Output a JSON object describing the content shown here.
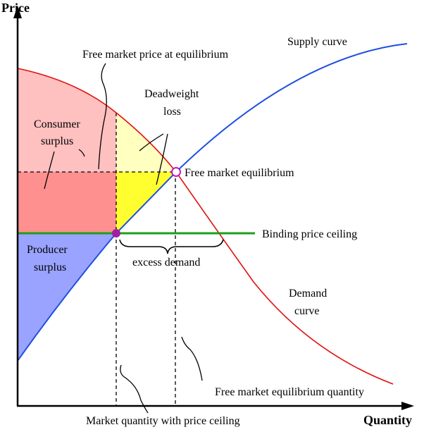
{
  "axes": {
    "y_label": "Price",
    "x_label": "Quantity"
  },
  "labels": {
    "supply_curve": "Supply curve",
    "demand_curve_line1": "Demand",
    "demand_curve_line2": "curve",
    "free_market_price": "Free market price at equilibrium",
    "deadweight_line1": "Deadweight",
    "deadweight_line2": "loss",
    "consumer_line1": "Consumer",
    "consumer_line2": "surplus",
    "producer_line1": "Producer",
    "producer_line2": "surplus",
    "free_market_equilibrium": "Free market equilibrium",
    "binding_price_ceiling": "Binding price ceiling",
    "excess_demand": "excess demand",
    "free_market_equilibrium_quantity": "Free market equilibrium quantity",
    "market_quantity_with_ceiling": "Market quantity with price ceiling"
  },
  "colors": {
    "supply": "#1f4fe0",
    "demand": "#e01010",
    "price_ceiling": "#1aa01a",
    "consumer_surplus_light": "#ffc0c0",
    "consumer_surplus_dark": "#ff9090",
    "producer_surplus": "#9aa3ff",
    "deadweight_light": "#ffffc0",
    "deadweight_dark": "#ffff30"
  }
}
